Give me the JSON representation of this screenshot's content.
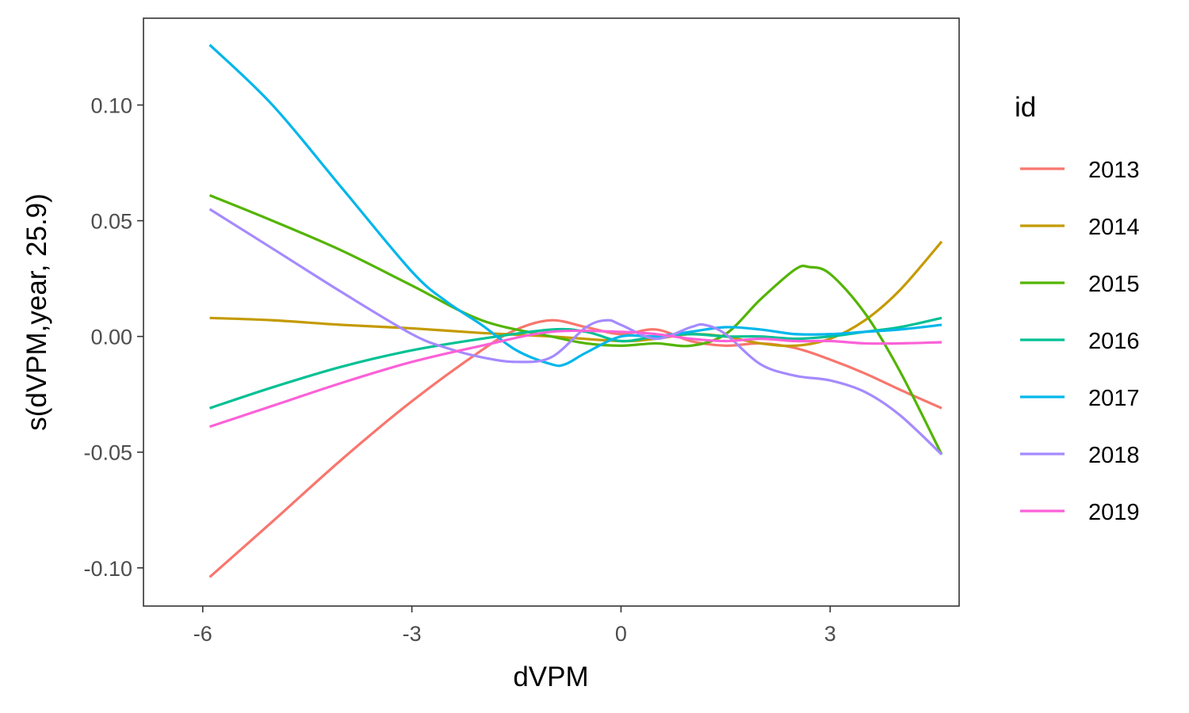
{
  "chart_data": {
    "type": "line",
    "xlabel": "dVPM",
    "ylabel": "s(dVPM,year, 25.9)",
    "xlim": [
      -6.85,
      4.85
    ],
    "ylim": [
      -0.1165,
      0.1375
    ],
    "xticks": [
      -6,
      -3,
      0,
      3
    ],
    "xtick_labels": [
      "-6",
      "-3",
      "0",
      "3"
    ],
    "yticks": [
      -0.1,
      -0.05,
      0.0,
      0.05,
      0.1
    ],
    "ytick_labels": [
      "-0.10",
      "-0.05",
      "0.00",
      "0.05",
      "0.10"
    ],
    "grid": false,
    "legend_title": "id",
    "legend_position": "right",
    "series": [
      {
        "name": "2013",
        "color": "#F8766D",
        "x": [
          -5.9,
          -5,
          -4,
          -3,
          -2,
          -1.5,
          -1,
          -0.5,
          0,
          0.5,
          1,
          1.5,
          2,
          2.5,
          3,
          3.5,
          4,
          4.6
        ],
        "y": [
          -0.104,
          -0.08,
          -0.053,
          -0.028,
          -0.006,
          0.003,
          0.007,
          0.004,
          0.001,
          0.003,
          -0.002,
          -0.004,
          -0.003,
          -0.005,
          -0.01,
          -0.016,
          -0.023,
          -0.031
        ]
      },
      {
        "name": "2014",
        "color": "#C49A00",
        "x": [
          -5.9,
          -5,
          -4,
          -3,
          -2,
          -1,
          0,
          0.5,
          1,
          1.5,
          2,
          2.5,
          3,
          3.5,
          4,
          4.6
        ],
        "y": [
          0.008,
          0.007,
          0.005,
          0.0035,
          0.0015,
          0.0,
          -0.002,
          -0.001,
          0.001,
          0.0,
          -0.003,
          -0.004,
          -0.001,
          0.007,
          0.02,
          0.041
        ]
      },
      {
        "name": "2015",
        "color": "#53B400",
        "x": [
          -5.9,
          -5,
          -4,
          -3,
          -2,
          -1,
          -0.5,
          0,
          0.5,
          1,
          1.5,
          2,
          2.5,
          2.7,
          3,
          3.5,
          4,
          4.6
        ],
        "y": [
          0.061,
          0.05,
          0.037,
          0.022,
          0.007,
          0.0,
          -0.003,
          -0.004,
          -0.003,
          -0.004,
          0.001,
          0.016,
          0.029,
          0.03,
          0.027,
          0.01,
          -0.015,
          -0.051
        ]
      },
      {
        "name": "2016",
        "color": "#00C094",
        "x": [
          -5.9,
          -5,
          -4,
          -3,
          -2,
          -1,
          -0.5,
          0,
          0.5,
          1,
          1.5,
          2,
          2.5,
          3,
          3.5,
          4,
          4.6
        ],
        "y": [
          -0.031,
          -0.022,
          -0.013,
          -0.006,
          -0.001,
          0.003,
          0.002,
          -0.002,
          0.0,
          0.001,
          0.0,
          0.0,
          -0.001,
          0.0,
          0.002,
          0.004,
          0.008
        ]
      },
      {
        "name": "2017",
        "color": "#00B6EB",
        "x": [
          -5.9,
          -5,
          -4,
          -3,
          -2.5,
          -2,
          -1.5,
          -1,
          -0.8,
          -0.5,
          0,
          0.5,
          1,
          1.5,
          2,
          2.5,
          3,
          3.5,
          4,
          4.6
        ],
        "y": [
          0.126,
          0.1,
          0.064,
          0.028,
          0.015,
          0.005,
          -0.006,
          -0.012,
          -0.012,
          -0.007,
          0.0,
          0.0,
          0.002,
          0.004,
          0.003,
          0.001,
          0.001,
          0.002,
          0.003,
          0.005
        ]
      },
      {
        "name": "2018",
        "color": "#A58AFF",
        "x": [
          -5.9,
          -5,
          -4,
          -3,
          -2.5,
          -2,
          -1.5,
          -1,
          -0.5,
          -0.2,
          0,
          0.5,
          1,
          1.2,
          1.5,
          2,
          2.5,
          3,
          3.5,
          4,
          4.6
        ],
        "y": [
          0.055,
          0.038,
          0.019,
          0.001,
          -0.005,
          -0.009,
          -0.011,
          -0.009,
          0.004,
          0.007,
          0.005,
          -0.001,
          0.004,
          0.005,
          0.001,
          -0.012,
          -0.017,
          -0.019,
          -0.024,
          -0.034,
          -0.051
        ]
      },
      {
        "name": "2019",
        "color": "#FB61D7",
        "x": [
          -5.9,
          -5,
          -4,
          -3,
          -2,
          -1,
          0,
          0.5,
          1,
          1.5,
          2,
          2.5,
          3,
          3.5,
          4,
          4.6
        ],
        "y": [
          -0.039,
          -0.03,
          -0.02,
          -0.011,
          -0.004,
          0.002,
          0.002,
          0.001,
          -0.001,
          -0.002,
          -0.001,
          -0.002,
          -0.002,
          -0.003,
          -0.003,
          -0.0025
        ]
      }
    ]
  }
}
